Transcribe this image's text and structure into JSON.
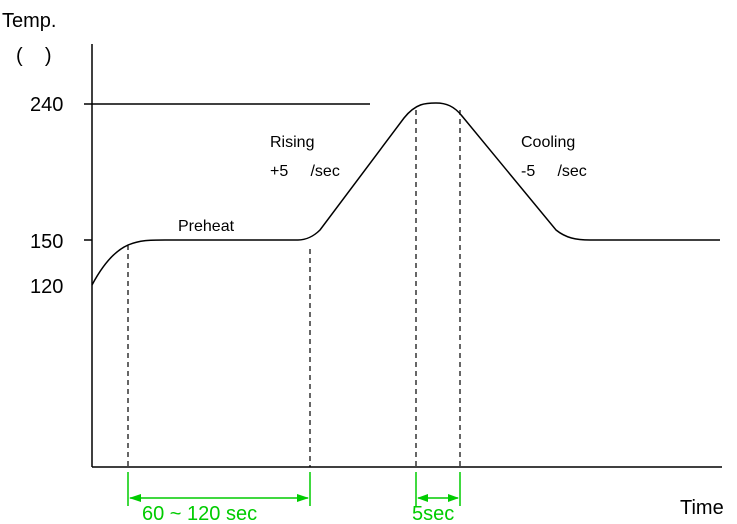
{
  "axis": {
    "y_label": "Temp.",
    "y_unit": "(    )",
    "x_label": "Time",
    "ticks": [
      "240",
      "150",
      "120"
    ]
  },
  "annotations": {
    "preheat": "Preheat",
    "rising_title": "Rising",
    "rising_rate": "+5     /sec",
    "cooling_title": "Cooling",
    "cooling_rate": "-5     /sec"
  },
  "dimensions": {
    "preheat_time": "60 ~ 120 sec",
    "peak_time": "5sec"
  },
  "colors": {
    "line": "#000000",
    "dimension": "#00cc00"
  }
}
